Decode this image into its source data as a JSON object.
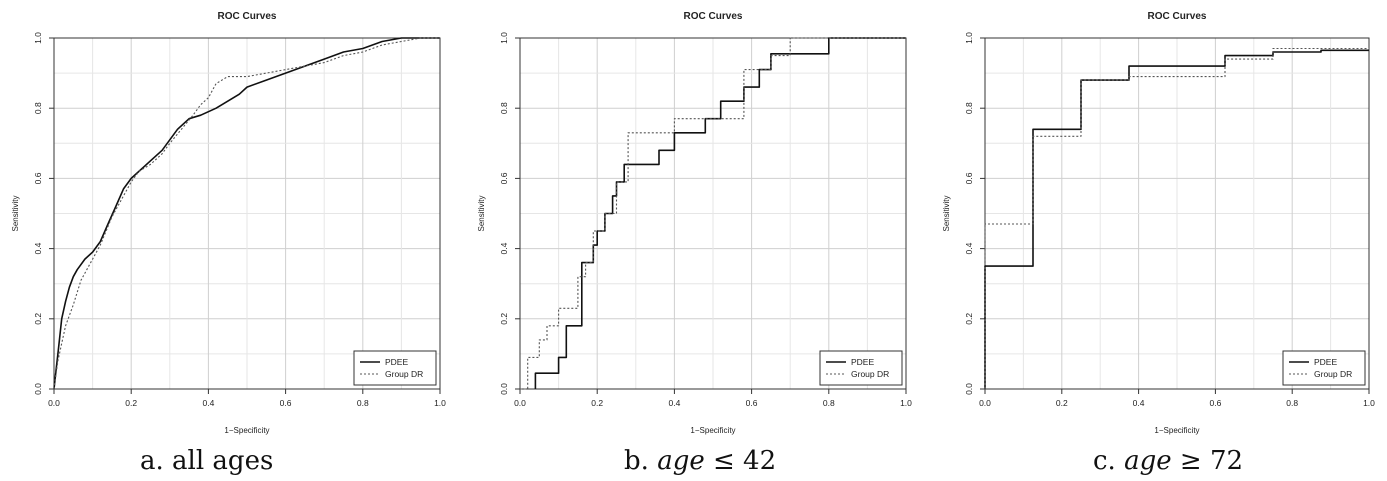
{
  "chart_data": [
    {
      "type": "line",
      "title": "ROC Curves",
      "xlabel": "1−Specificity",
      "ylabel": "Sensitivity",
      "xlim": [
        0,
        1
      ],
      "ylim": [
        0,
        1
      ],
      "xticks": [
        "0.0",
        "0.2",
        "0.4",
        "0.6",
        "0.8",
        "1.0"
      ],
      "yticks": [
        "0.0",
        "0.2",
        "0.4",
        "0.6",
        "0.8",
        "1.0"
      ],
      "grid": true,
      "legend_position": "bottom-right",
      "caption_prefix": "a.",
      "caption_text": "all ages",
      "caption_math": "",
      "caption_rel": "",
      "caption_value": "",
      "series": [
        {
          "name": "PDEE",
          "style": "solid",
          "step": false,
          "x": [
            0.0,
            0.005,
            0.01,
            0.015,
            0.02,
            0.03,
            0.04,
            0.05,
            0.06,
            0.08,
            0.1,
            0.12,
            0.14,
            0.16,
            0.18,
            0.2,
            0.22,
            0.25,
            0.28,
            0.3,
            0.32,
            0.35,
            0.38,
            0.4,
            0.42,
            0.45,
            0.48,
            0.5,
            0.55,
            0.6,
            0.65,
            0.7,
            0.75,
            0.8,
            0.85,
            0.9,
            0.95,
            1.0
          ],
          "y": [
            0.0,
            0.05,
            0.1,
            0.15,
            0.2,
            0.25,
            0.29,
            0.32,
            0.34,
            0.37,
            0.39,
            0.42,
            0.47,
            0.52,
            0.57,
            0.6,
            0.62,
            0.65,
            0.68,
            0.71,
            0.74,
            0.77,
            0.78,
            0.79,
            0.8,
            0.82,
            0.84,
            0.86,
            0.88,
            0.9,
            0.92,
            0.94,
            0.96,
            0.97,
            0.99,
            1.0,
            1.0,
            1.0
          ]
        },
        {
          "name": "Group DR",
          "style": "dotted",
          "step": false,
          "x": [
            0.0,
            0.005,
            0.01,
            0.02,
            0.03,
            0.05,
            0.07,
            0.1,
            0.12,
            0.15,
            0.18,
            0.2,
            0.22,
            0.25,
            0.28,
            0.3,
            0.33,
            0.36,
            0.38,
            0.4,
            0.42,
            0.45,
            0.5,
            0.55,
            0.6,
            0.65,
            0.7,
            0.75,
            0.8,
            0.85,
            0.9,
            0.95,
            1.0
          ],
          "y": [
            0.0,
            0.04,
            0.08,
            0.13,
            0.18,
            0.24,
            0.31,
            0.37,
            0.41,
            0.49,
            0.55,
            0.59,
            0.62,
            0.64,
            0.67,
            0.7,
            0.74,
            0.78,
            0.81,
            0.83,
            0.87,
            0.89,
            0.89,
            0.9,
            0.91,
            0.92,
            0.93,
            0.95,
            0.96,
            0.98,
            0.99,
            1.0,
            1.0
          ]
        }
      ]
    },
    {
      "type": "line",
      "title": "ROC Curves",
      "xlabel": "1−Specificity",
      "ylabel": "Sensitivity",
      "xlim": [
        0,
        1
      ],
      "ylim": [
        0,
        1
      ],
      "xticks": [
        "0.0",
        "0.2",
        "0.4",
        "0.6",
        "0.8",
        "1.0"
      ],
      "yticks": [
        "0.0",
        "0.2",
        "0.4",
        "0.6",
        "0.8",
        "1.0"
      ],
      "grid": true,
      "legend_position": "bottom-right",
      "caption_prefix": "b.",
      "caption_text": "",
      "caption_math": "age",
      "caption_rel": "≤",
      "caption_value": "42",
      "series": [
        {
          "name": "PDEE",
          "style": "solid",
          "step": true,
          "x": [
            0.04,
            0.04,
            0.08,
            0.08,
            0.1,
            0.1,
            0.12,
            0.12,
            0.16,
            0.16,
            0.19,
            0.19,
            0.2,
            0.2,
            0.22,
            0.22,
            0.24,
            0.24,
            0.25,
            0.25,
            0.27,
            0.27,
            0.3,
            0.3,
            0.36,
            0.36,
            0.4,
            0.4,
            0.48,
            0.48,
            0.52,
            0.52,
            0.58,
            0.58,
            0.62,
            0.62,
            0.65,
            0.65,
            0.8,
            0.8,
            1.0
          ],
          "y": [
            0.0,
            0.045,
            0.045,
            0.045,
            0.045,
            0.09,
            0.09,
            0.18,
            0.18,
            0.36,
            0.36,
            0.41,
            0.41,
            0.45,
            0.45,
            0.5,
            0.5,
            0.55,
            0.55,
            0.59,
            0.59,
            0.64,
            0.64,
            0.64,
            0.64,
            0.68,
            0.68,
            0.73,
            0.73,
            0.77,
            0.77,
            0.82,
            0.82,
            0.86,
            0.86,
            0.91,
            0.91,
            0.955,
            0.955,
            1.0,
            1.0
          ]
        },
        {
          "name": "Group DR",
          "style": "dotted",
          "step": true,
          "x": [
            0.0,
            0.02,
            0.02,
            0.05,
            0.05,
            0.07,
            0.07,
            0.1,
            0.1,
            0.15,
            0.15,
            0.17,
            0.17,
            0.19,
            0.19,
            0.22,
            0.22,
            0.25,
            0.25,
            0.28,
            0.28,
            0.4,
            0.4,
            0.48,
            0.48,
            0.58,
            0.58,
            0.65,
            0.65,
            0.7,
            0.7,
            1.0
          ],
          "y": [
            0.0,
            0.0,
            0.09,
            0.09,
            0.14,
            0.14,
            0.18,
            0.18,
            0.23,
            0.23,
            0.32,
            0.32,
            0.36,
            0.36,
            0.45,
            0.45,
            0.5,
            0.5,
            0.59,
            0.59,
            0.73,
            0.73,
            0.77,
            0.77,
            0.77,
            0.77,
            0.91,
            0.91,
            0.95,
            0.95,
            1.0,
            1.0
          ]
        }
      ]
    },
    {
      "type": "line",
      "title": "ROC Curves",
      "xlabel": "1−Specificity",
      "ylabel": "Sensitivity",
      "xlim": [
        0,
        1
      ],
      "ylim": [
        0,
        1
      ],
      "xticks": [
        "0.0",
        "0.2",
        "0.4",
        "0.6",
        "0.8",
        "1.0"
      ],
      "yticks": [
        "0.0",
        "0.2",
        "0.4",
        "0.6",
        "0.8",
        "1.0"
      ],
      "grid": true,
      "legend_position": "bottom-right",
      "caption_prefix": "c.",
      "caption_text": "",
      "caption_math": "age",
      "caption_rel": "≥",
      "caption_value": "72",
      "series": [
        {
          "name": "PDEE",
          "style": "solid",
          "step": true,
          "x": [
            0.0,
            0.0,
            0.125,
            0.125,
            0.25,
            0.25,
            0.375,
            0.375,
            0.625,
            0.625,
            0.75,
            0.75,
            0.875,
            0.875,
            1.0
          ],
          "y": [
            0.0,
            0.35,
            0.35,
            0.74,
            0.74,
            0.88,
            0.88,
            0.92,
            0.92,
            0.95,
            0.95,
            0.96,
            0.96,
            0.965,
            0.965
          ]
        },
        {
          "name": "Group DR",
          "style": "dotted",
          "step": true,
          "x": [
            0.0,
            0.0,
            0.125,
            0.125,
            0.25,
            0.25,
            0.375,
            0.375,
            0.625,
            0.625,
            0.75,
            0.75,
            1.0
          ],
          "y": [
            0.0,
            0.47,
            0.47,
            0.72,
            0.72,
            0.88,
            0.88,
            0.89,
            0.89,
            0.94,
            0.94,
            0.97,
            0.97
          ]
        }
      ]
    }
  ]
}
